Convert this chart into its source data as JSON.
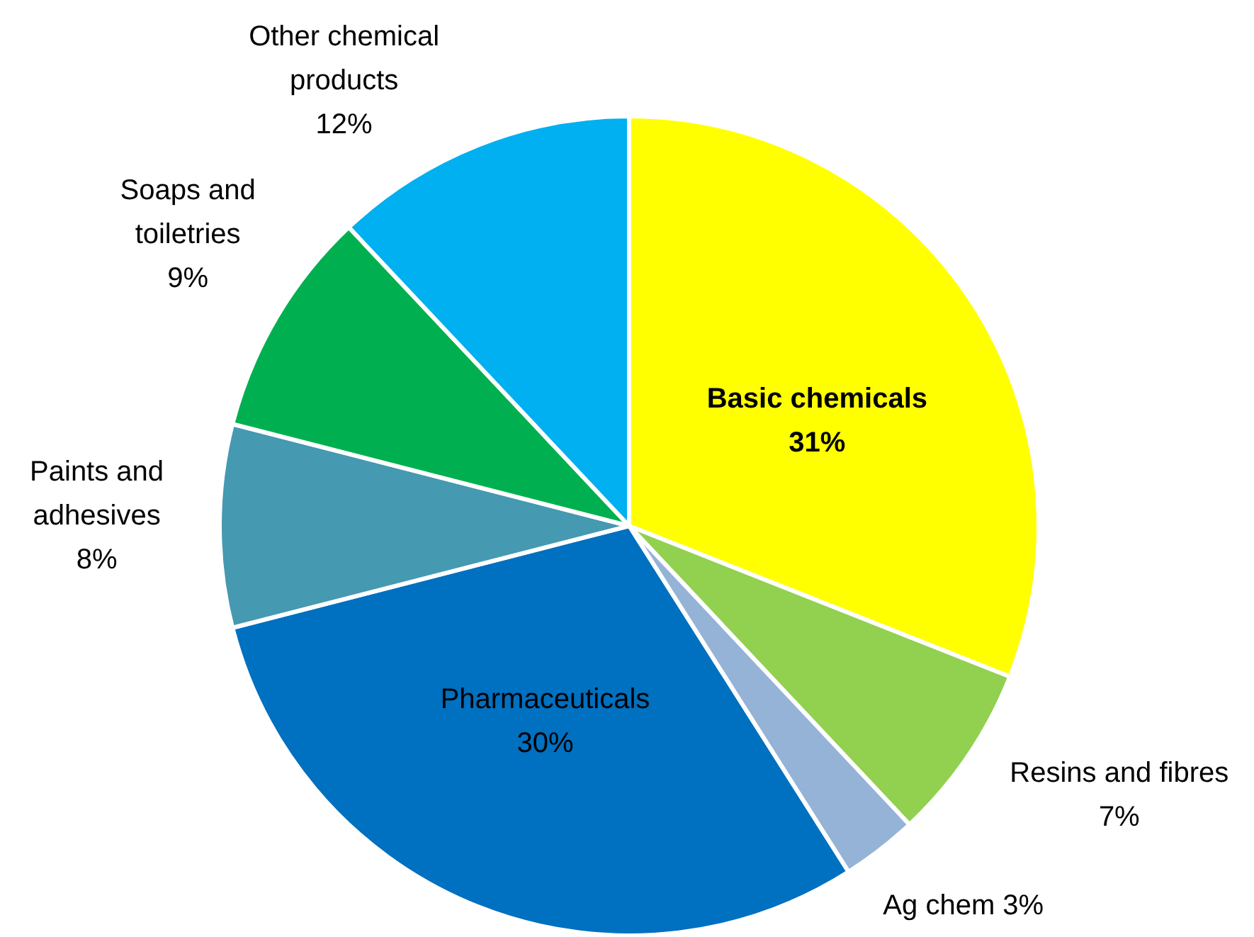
{
  "chart_data": {
    "type": "pie",
    "categories": [
      "Basic chemicals",
      "Resins and fibres",
      "Ag chem",
      "Pharmaceuticals",
      "Paints and adhesives",
      "Soaps and toiletries",
      "Other chemical products"
    ],
    "values": [
      31,
      7,
      3,
      30,
      8,
      9,
      12
    ],
    "colors": [
      "#ffff00",
      "#92d050",
      "#95b3d7",
      "#0070c0",
      "#4599b1",
      "#00b050",
      "#00b0f0"
    ],
    "value_labels": [
      "31%",
      "7%",
      "3%",
      "30%",
      "8%",
      "9%",
      "12%"
    ]
  }
}
